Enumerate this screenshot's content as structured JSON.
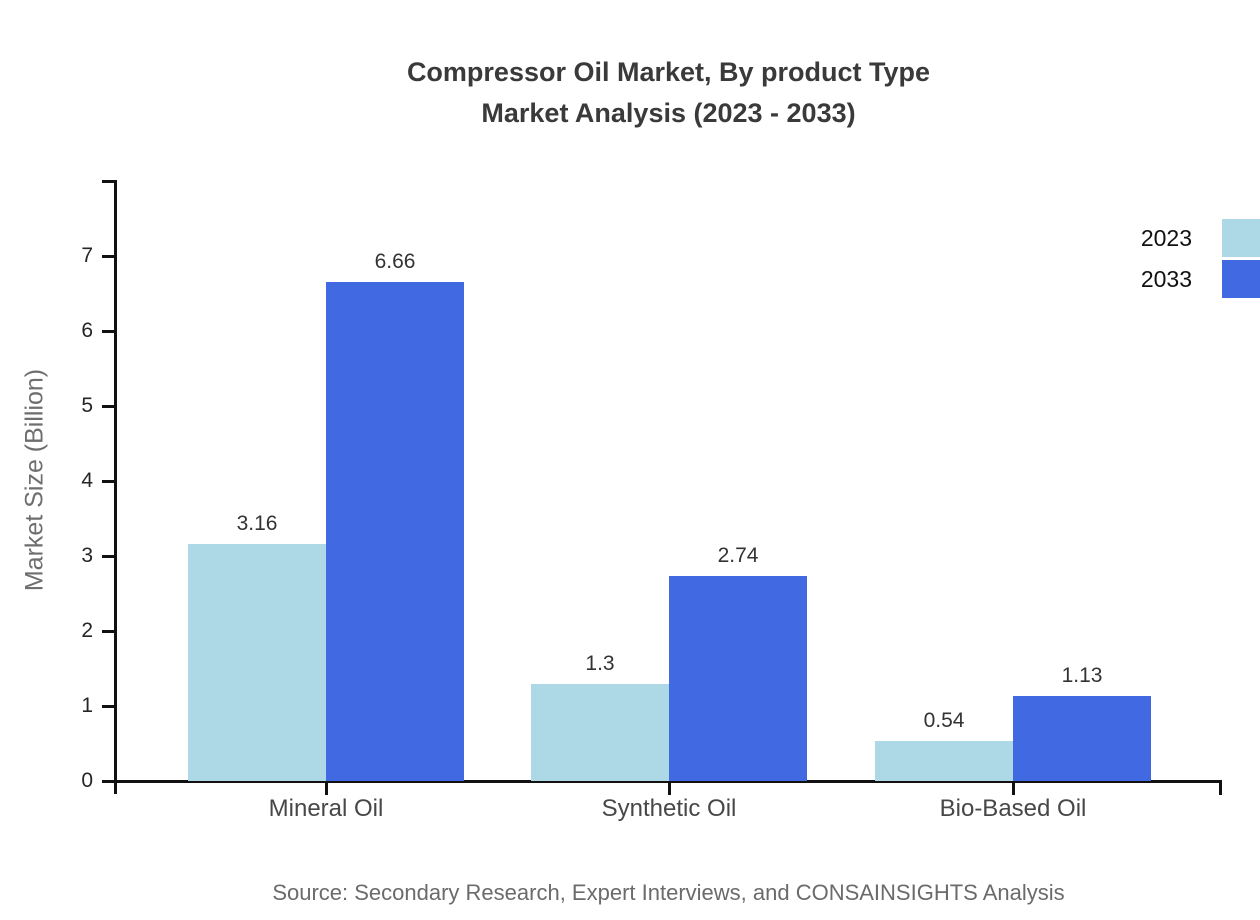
{
  "title": {
    "line1": "Compressor Oil Market, By product Type",
    "line2": "Market Analysis (2023 - 2033)"
  },
  "source": "Source: Secondary Research, Expert Interviews, and CONSAINSIGHTS Analysis",
  "colors": {
    "series_2023": "#ADD8E6",
    "series_2033": "#4169E1",
    "axis": "#111111",
    "title_text": "#3a3a3a",
    "muted_text": "#6b6b6b"
  },
  "chart_data": {
    "type": "bar",
    "title": "Compressor Oil Market, By product Type Market Analysis (2023 - 2033)",
    "categories": [
      "Mineral Oil",
      "Synthetic Oil",
      "Bio-Based Oil"
    ],
    "series": [
      {
        "name": "2023",
        "color": "#ADD8E6",
        "values": [
          3.16,
          1.3,
          0.54
        ],
        "labels": [
          "3.16",
          "1.3",
          "0.54"
        ]
      },
      {
        "name": "2033",
        "color": "#4169E1",
        "values": [
          6.66,
          2.74,
          1.13
        ],
        "labels": [
          "6.66",
          "2.74",
          "1.13"
        ]
      }
    ],
    "xlabel": "",
    "ylabel": "Market Size (Billion)",
    "ylim": [
      0,
      8
    ],
    "yticks": [
      0,
      1,
      2,
      3,
      4,
      5,
      6,
      7
    ],
    "grid": false,
    "legend_position": "top-right"
  }
}
